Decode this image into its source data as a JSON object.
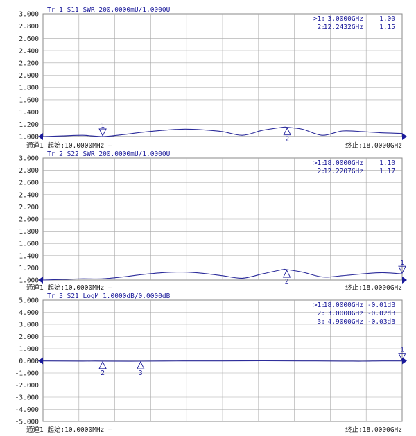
{
  "chart_data": [
    {
      "type": "line",
      "header": "Tr 1  S11 SWR 200.0000mU/1.0000U",
      "ylim": [
        1.0,
        3.0
      ],
      "ytick_labels": [
        "3.000",
        "2.800",
        "2.600",
        "2.400",
        "2.200",
        "2.000",
        "1.800",
        "1.600",
        "1.400",
        "1.200",
        "1.000"
      ],
      "xlim": [
        0.01,
        18.0
      ],
      "x": [
        0.01,
        1.0,
        2.0,
        3.0,
        4.0,
        5.0,
        6.0,
        7.0,
        8.0,
        9.0,
        10.0,
        11.0,
        12.0,
        12.24,
        13.0,
        14.0,
        15.0,
        16.0,
        17.0,
        18.0
      ],
      "y": [
        1.0,
        1.01,
        1.02,
        1.0,
        1.03,
        1.07,
        1.1,
        1.12,
        1.11,
        1.08,
        1.02,
        1.1,
        1.15,
        1.15,
        1.12,
        1.02,
        1.09,
        1.08,
        1.06,
        1.05
      ],
      "markers": [
        {
          "id": "1",
          "x": 3.0,
          "y": 1.0,
          "side": "below",
          "readout_active": ">1:",
          "readout_freq": "3.0000GHz",
          "readout_val": "1.00"
        },
        {
          "id": "2",
          "x": 12.2432,
          "y": 1.15,
          "side": "above",
          "readout_active": "2:",
          "readout_freq": "12.2432GHz",
          "readout_val": "1.15"
        }
      ],
      "footer_left": "通道1  起始:10.0000MHz —",
      "footer_right": "终止:18.0000GHz"
    },
    {
      "type": "line",
      "header": "Tr 2  S22 SWR 200.0000mU/1.0000U",
      "ylim": [
        1.0,
        3.0
      ],
      "ytick_labels": [
        "3.000",
        "2.800",
        "2.600",
        "2.400",
        "2.200",
        "2.000",
        "1.800",
        "1.600",
        "1.400",
        "1.200",
        "1.000"
      ],
      "xlim": [
        0.01,
        18.0
      ],
      "x": [
        0.01,
        1.0,
        2.0,
        3.0,
        4.0,
        5.0,
        6.0,
        7.0,
        8.0,
        9.0,
        10.0,
        11.0,
        12.0,
        12.22,
        13.0,
        14.0,
        15.0,
        16.0,
        17.0,
        18.0
      ],
      "y": [
        1.0,
        1.01,
        1.02,
        1.02,
        1.05,
        1.09,
        1.12,
        1.13,
        1.11,
        1.07,
        1.03,
        1.1,
        1.17,
        1.17,
        1.13,
        1.05,
        1.07,
        1.1,
        1.12,
        1.1
      ],
      "markers": [
        {
          "id": "1",
          "x": 18.0,
          "y": 1.1,
          "side": "below",
          "readout_active": ">1:",
          "readout_freq": "18.0000GHz",
          "readout_val": "1.10"
        },
        {
          "id": "2",
          "x": 12.2207,
          "y": 1.17,
          "side": "above",
          "readout_active": "2:",
          "readout_freq": "12.2207GHz",
          "readout_val": "1.17"
        }
      ],
      "footer_left": "通道1  起始:10.0000MHz —",
      "footer_right": "终止:18.0000GHz"
    },
    {
      "type": "line",
      "header": "Tr 3  S21 LogM 1.0000dB/0.0000dB",
      "ylim": [
        -5.0,
        5.0
      ],
      "ytick_labels": [
        "5.000",
        "4.000",
        "3.000",
        "2.000",
        "1.000",
        "0.000",
        "-1.000",
        "-2.000",
        "-3.000",
        "-4.000",
        "-5.000"
      ],
      "xlim": [
        0.01,
        18.0
      ],
      "x": [
        0.01,
        2.0,
        3.0,
        4.9,
        7.0,
        9.0,
        11.0,
        13.0,
        15.0,
        16.0,
        17.0,
        18.0
      ],
      "y": [
        -0.01,
        -0.02,
        -0.02,
        -0.03,
        -0.01,
        -0.01,
        0.0,
        -0.01,
        -0.02,
        -0.03,
        -0.01,
        -0.01
      ],
      "markers": [
        {
          "id": "1",
          "x": 18.0,
          "y": -0.01,
          "side": "below",
          "readout_active": ">1:",
          "readout_freq": "18.0000GHz",
          "readout_val": "-0.01dB"
        },
        {
          "id": "2",
          "x": 3.0,
          "y": -0.02,
          "side": "above",
          "readout_active": "2:",
          "readout_freq": "3.0000GHz",
          "readout_val": "-0.02dB"
        },
        {
          "id": "3",
          "x": 4.9,
          "y": -0.03,
          "side": "above",
          "readout_active": "3:",
          "readout_freq": "4.9000GHz",
          "readout_val": "-0.03dB"
        }
      ],
      "footer_left": "通道1  起始:10.0000MHz —",
      "footer_right": "终止:18.0000GHz"
    }
  ],
  "colors": {
    "trace": "#2b2b9a",
    "marker": "#1a1a9a",
    "grid": "#8a8a8a",
    "text": "#222222",
    "header": "#1a1a9a"
  }
}
